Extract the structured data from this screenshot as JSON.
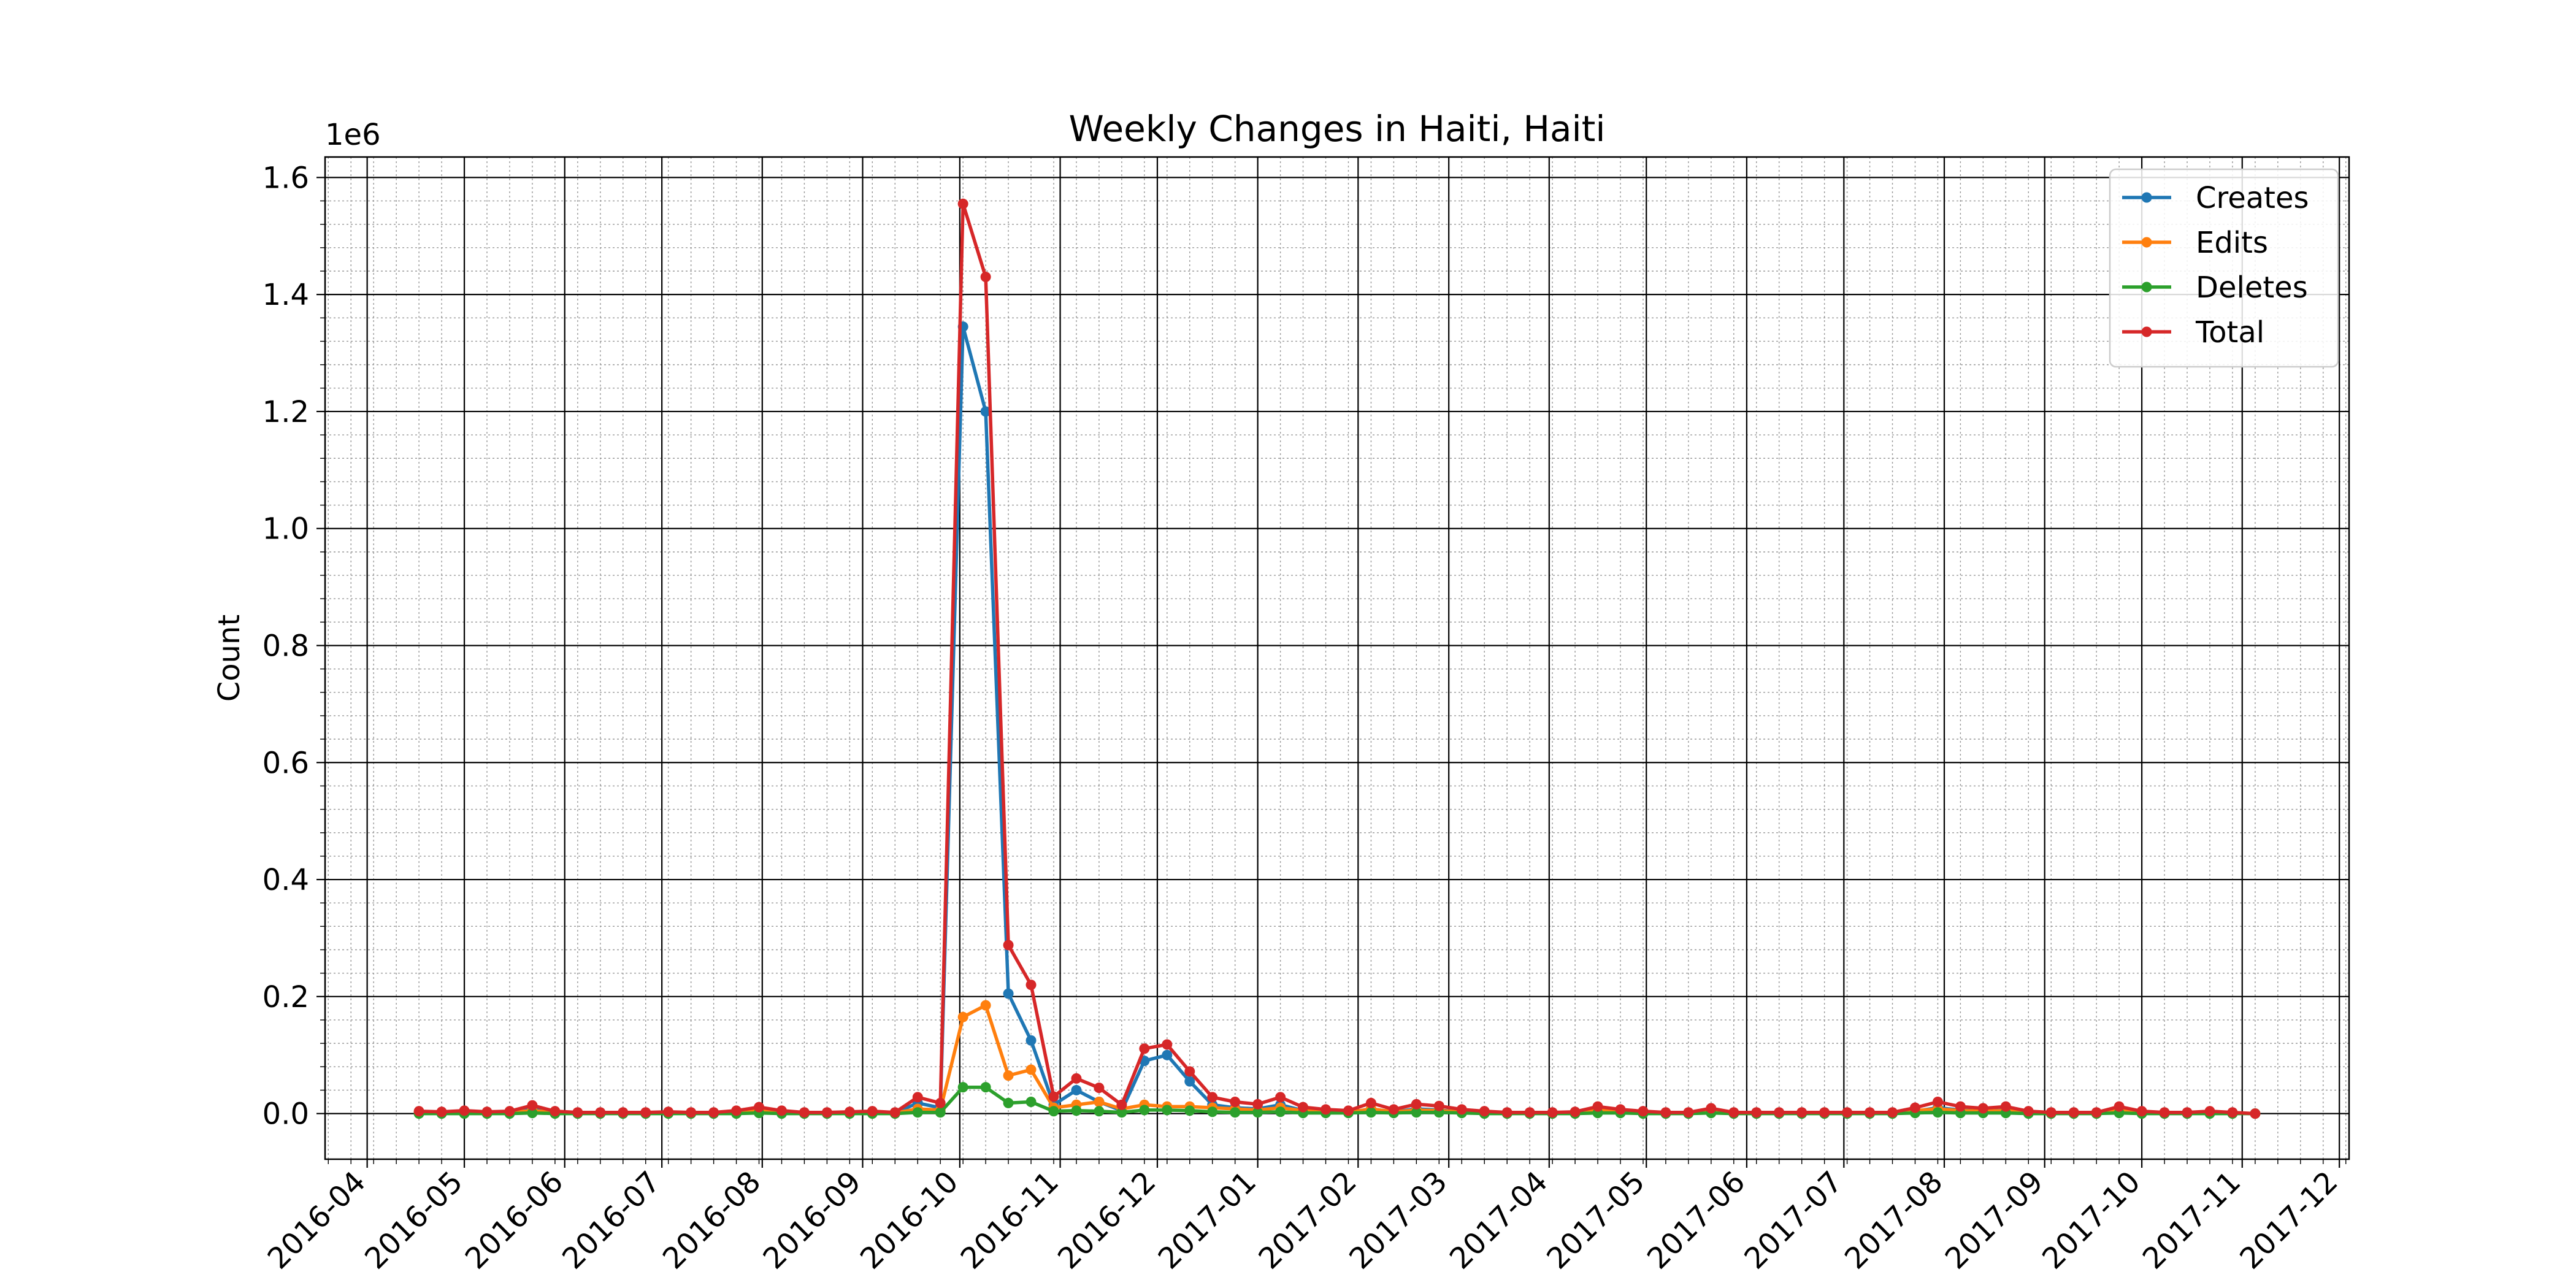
{
  "chart_data": {
    "type": "line",
    "title": "Weekly Changes in Haiti, Haiti",
    "xlabel": "",
    "ylabel": "Count",
    "y_scale_label": "1e6",
    "xlim": [
      "2016-03-19",
      "2017-12-04"
    ],
    "ylim": [
      -0.078,
      1.635
    ],
    "x_ticks": [
      "2016-04",
      "2016-05",
      "2016-06",
      "2016-07",
      "2016-08",
      "2016-09",
      "2016-10",
      "2016-11",
      "2016-12",
      "2017-01",
      "2017-02",
      "2017-03",
      "2017-04",
      "2017-05",
      "2017-06",
      "2017-07",
      "2017-08",
      "2017-09",
      "2017-10",
      "2017-11",
      "2017-12"
    ],
    "y_ticks": [
      0.0,
      0.2,
      0.4,
      0.6,
      0.8,
      1.0,
      1.2,
      1.4,
      1.6
    ],
    "y_tick_labels": [
      "0.0",
      "0.2",
      "0.4",
      "0.6",
      "0.8",
      "1.0",
      "1.2",
      "1.4",
      "1.6"
    ],
    "grid": "major and minor",
    "legend": "top-right",
    "x": [
      "2016-04-17",
      "2016-04-24",
      "2016-05-01",
      "2016-05-08",
      "2016-05-15",
      "2016-05-22",
      "2016-05-29",
      "2016-06-05",
      "2016-06-12",
      "2016-06-19",
      "2016-06-26",
      "2016-07-03",
      "2016-07-10",
      "2016-07-17",
      "2016-07-24",
      "2016-07-31",
      "2016-08-07",
      "2016-08-14",
      "2016-08-21",
      "2016-08-28",
      "2016-09-04",
      "2016-09-11",
      "2016-09-18",
      "2016-09-25",
      "2016-10-02",
      "2016-10-09",
      "2016-10-16",
      "2016-10-23",
      "2016-10-30",
      "2016-11-06",
      "2016-11-13",
      "2016-11-20",
      "2016-11-27",
      "2016-12-04",
      "2016-12-11",
      "2016-12-18",
      "2016-12-25",
      "2017-01-01",
      "2017-01-08",
      "2017-01-15",
      "2017-01-22",
      "2017-01-29",
      "2017-02-05",
      "2017-02-12",
      "2017-02-19",
      "2017-02-26",
      "2017-03-05",
      "2017-03-12",
      "2017-03-19",
      "2017-03-26",
      "2017-04-02",
      "2017-04-09",
      "2017-04-16",
      "2017-04-23",
      "2017-04-30",
      "2017-05-07",
      "2017-05-14",
      "2017-05-21",
      "2017-05-28",
      "2017-06-04",
      "2017-06-11",
      "2017-06-18",
      "2017-06-25",
      "2017-07-02",
      "2017-07-09",
      "2017-07-16",
      "2017-07-23",
      "2017-07-30",
      "2017-08-06",
      "2017-08-13",
      "2017-08-20",
      "2017-08-27",
      "2017-09-03",
      "2017-09-10",
      "2017-09-17",
      "2017-09-24",
      "2017-10-01",
      "2017-10-08",
      "2017-10-15",
      "2017-10-22",
      "2017-10-29",
      "2017-11-05"
    ],
    "series": [
      {
        "name": "Creates",
        "color": "#1f77b4",
        "values": [
          0.002,
          0.001,
          0.002,
          0.001,
          0.002,
          0.008,
          0.002,
          0.001,
          0.001,
          0.001,
          0.001,
          0.001,
          0.001,
          0.001,
          0.002,
          0.005,
          0.003,
          0.001,
          0.001,
          0.001,
          0.002,
          0.001,
          0.018,
          0.01,
          1.345,
          1.2,
          0.205,
          0.125,
          0.015,
          0.04,
          0.02,
          0.005,
          0.09,
          0.1,
          0.055,
          0.015,
          0.01,
          0.008,
          0.015,
          0.005,
          0.003,
          0.002,
          0.008,
          0.003,
          0.008,
          0.006,
          0.003,
          0.002,
          0.001,
          0.001,
          0.001,
          0.001,
          0.005,
          0.003,
          0.002,
          0.001,
          0.001,
          0.004,
          0.001,
          0.001,
          0.001,
          0.001,
          0.001,
          0.001,
          0.001,
          0.001,
          0.004,
          0.01,
          0.006,
          0.004,
          0.006,
          0.002,
          0.001,
          0.001,
          0.001,
          0.006,
          0.002,
          0.001,
          0.001,
          0.002,
          0.001,
          0.0
        ]
      },
      {
        "name": "Edits",
        "color": "#ff7f0e",
        "values": [
          0.002,
          0.002,
          0.003,
          0.002,
          0.002,
          0.005,
          0.002,
          0.001,
          0.001,
          0.001,
          0.001,
          0.002,
          0.001,
          0.001,
          0.003,
          0.005,
          0.002,
          0.001,
          0.001,
          0.002,
          0.002,
          0.001,
          0.008,
          0.006,
          0.165,
          0.185,
          0.065,
          0.075,
          0.01,
          0.015,
          0.02,
          0.008,
          0.015,
          0.012,
          0.012,
          0.01,
          0.008,
          0.006,
          0.01,
          0.005,
          0.003,
          0.002,
          0.008,
          0.003,
          0.006,
          0.005,
          0.003,
          0.002,
          0.001,
          0.001,
          0.001,
          0.002,
          0.006,
          0.003,
          0.002,
          0.001,
          0.001,
          0.004,
          0.001,
          0.001,
          0.001,
          0.001,
          0.001,
          0.001,
          0.001,
          0.001,
          0.005,
          0.008,
          0.005,
          0.004,
          0.005,
          0.002,
          0.001,
          0.001,
          0.001,
          0.005,
          0.002,
          0.001,
          0.001,
          0.002,
          0.001,
          0.0
        ]
      },
      {
        "name": "Deletes",
        "color": "#2ca02c",
        "values": [
          0.0,
          0.0,
          0.0,
          0.0,
          0.0,
          0.001,
          0.0,
          0.0,
          0.0,
          0.0,
          0.0,
          0.0,
          0.0,
          0.0,
          0.0,
          0.001,
          0.0,
          0.0,
          0.0,
          0.0,
          0.0,
          0.0,
          0.002,
          0.002,
          0.045,
          0.045,
          0.018,
          0.02,
          0.004,
          0.005,
          0.004,
          0.002,
          0.006,
          0.006,
          0.005,
          0.003,
          0.002,
          0.002,
          0.003,
          0.001,
          0.001,
          0.001,
          0.002,
          0.001,
          0.002,
          0.002,
          0.001,
          0.0,
          0.0,
          0.0,
          0.0,
          0.0,
          0.001,
          0.001,
          0.0,
          0.0,
          0.0,
          0.001,
          0.0,
          0.0,
          0.0,
          0.0,
          0.0,
          0.0,
          0.0,
          0.0,
          0.001,
          0.002,
          0.001,
          0.001,
          0.001,
          0.0,
          0.0,
          0.0,
          0.0,
          0.001,
          0.0,
          0.0,
          0.0,
          0.0,
          0.0,
          0.0
        ]
      },
      {
        "name": "Total",
        "color": "#d62728",
        "values": [
          0.004,
          0.003,
          0.005,
          0.003,
          0.004,
          0.014,
          0.004,
          0.002,
          0.002,
          0.002,
          0.002,
          0.003,
          0.002,
          0.002,
          0.005,
          0.011,
          0.005,
          0.002,
          0.002,
          0.003,
          0.004,
          0.002,
          0.028,
          0.018,
          1.555,
          1.43,
          0.288,
          0.22,
          0.029,
          0.06,
          0.044,
          0.015,
          0.111,
          0.118,
          0.072,
          0.028,
          0.02,
          0.016,
          0.028,
          0.011,
          0.007,
          0.005,
          0.018,
          0.007,
          0.016,
          0.013,
          0.007,
          0.004,
          0.002,
          0.002,
          0.002,
          0.003,
          0.012,
          0.007,
          0.004,
          0.002,
          0.002,
          0.009,
          0.002,
          0.002,
          0.002,
          0.002,
          0.002,
          0.002,
          0.002,
          0.002,
          0.01,
          0.02,
          0.012,
          0.009,
          0.012,
          0.004,
          0.002,
          0.002,
          0.002,
          0.012,
          0.004,
          0.002,
          0.002,
          0.004,
          0.002,
          0.0
        ]
      }
    ]
  }
}
